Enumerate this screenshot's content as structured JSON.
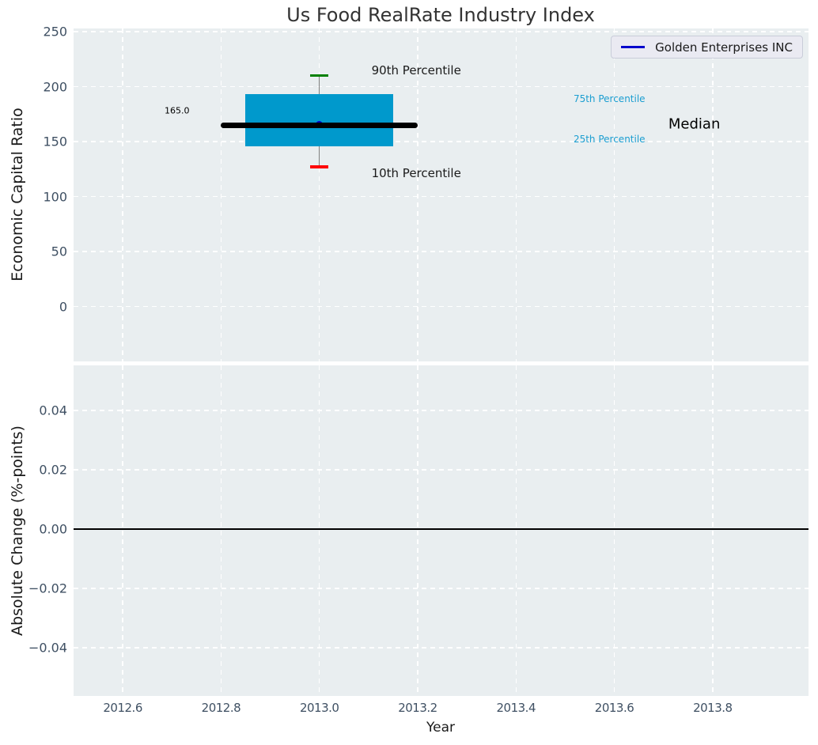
{
  "chart": {
    "title": "Us Food RealRate Industry Index",
    "xlabel": "Year",
    "legend": {
      "label": "Golden Enterprises INC",
      "line_color": "#0000cc",
      "position": "upper right"
    }
  },
  "colors": {
    "figure_bg": "#ffffff",
    "plot_bg": "#e9eef0",
    "grid": "#ffffff",
    "tick_text": "#3f5063",
    "title_text": "#333333",
    "axis_label_text": "#1a1a1a",
    "legend_bg": "#eaeaf2",
    "legend_border": "#c9ccd9"
  },
  "chart_data": [
    {
      "type": "box",
      "subplot": "top",
      "ylabel": "Economic Capital Ratio",
      "xlim": [
        2012.5,
        2013.995
      ],
      "ylim": [
        -50,
        253
      ],
      "grid": true,
      "xtick_labels_visible": false,
      "xticks": [
        {
          "v": 2012.6,
          "label": "2012.6"
        },
        {
          "v": 2012.8,
          "label": "2012.8"
        },
        {
          "v": 2013.0,
          "label": "2013.0"
        },
        {
          "v": 2013.2,
          "label": "2013.2"
        },
        {
          "v": 2013.4,
          "label": "2013.4"
        },
        {
          "v": 2013.6,
          "label": "2013.6"
        },
        {
          "v": 2013.8,
          "label": "2013.8"
        }
      ],
      "yticks": [
        {
          "v": 0,
          "label": "0"
        },
        {
          "v": 50,
          "label": "50"
        },
        {
          "v": 100,
          "label": "100"
        },
        {
          "v": 150,
          "label": "150"
        },
        {
          "v": 200,
          "label": "200"
        },
        {
          "v": 250,
          "label": "250"
        }
      ],
      "box": {
        "x_center": 2013.0,
        "box_x": [
          2012.85,
          2013.15
        ],
        "median_x": [
          2012.8,
          2013.2
        ],
        "cap_half_width": 0.0185,
        "p10": 127,
        "p25": 146,
        "median": 165,
        "p75": 193,
        "p90": 210,
        "value_label": "165.0"
      },
      "point": {
        "name": "Golden Enterprises INC",
        "x": 2013.0,
        "y": 165
      },
      "annotations": [
        {
          "text": "90th Percentile",
          "x": 2013.106,
          "y": 215,
          "color": "#1a1a1a",
          "size": "md"
        },
        {
          "text": "10th Percentile",
          "x": 2013.106,
          "y": 121,
          "color": "#1a1a1a",
          "size": "md"
        },
        {
          "text": "75th Percentile",
          "x": 2013.517,
          "y": 189,
          "color": "#1b9ed1",
          "size": "sm"
        },
        {
          "text": "25th Percentile",
          "x": 2013.517,
          "y": 152,
          "color": "#1b9ed1",
          "size": "sm"
        },
        {
          "text": "Median",
          "x": 2013.71,
          "y": 166,
          "color": "#000000",
          "size": "lg"
        },
        {
          "text": "165.0",
          "x": 2012.685,
          "y": 178,
          "color": "#000000",
          "size": "xs"
        }
      ],
      "colors": {
        "box_fill": "#0099cc",
        "whisker": "#808080",
        "p90_cap": "#008000",
        "p10_cap": "#ff0000",
        "median_line": "#000000",
        "point": "#0000cc"
      }
    },
    {
      "type": "line",
      "subplot": "bottom",
      "ylabel": "Absolute Change (%-points)",
      "xlim": [
        2012.5,
        2013.995
      ],
      "ylim": [
        -0.0563,
        0.0552
      ],
      "grid": true,
      "xtick_labels_visible": true,
      "xticks": [
        {
          "v": 2012.6,
          "label": "2012.6"
        },
        {
          "v": 2012.8,
          "label": "2012.8"
        },
        {
          "v": 2013.0,
          "label": "2013.0"
        },
        {
          "v": 2013.2,
          "label": "2013.2"
        },
        {
          "v": 2013.4,
          "label": "2013.4"
        },
        {
          "v": 2013.6,
          "label": "2013.6"
        },
        {
          "v": 2013.8,
          "label": "2013.8"
        }
      ],
      "yticks": [
        {
          "v": 0.04,
          "label": "0.04"
        },
        {
          "v": 0.02,
          "label": "0.02"
        },
        {
          "v": 0.0,
          "label": "0.00"
        },
        {
          "v": -0.02,
          "label": "−0.02"
        },
        {
          "v": -0.04,
          "label": "−0.04"
        }
      ],
      "zero_line": 0
    }
  ]
}
